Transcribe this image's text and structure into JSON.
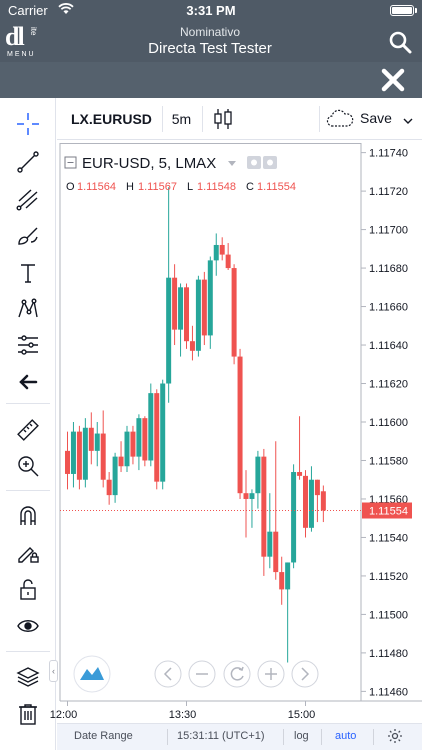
{
  "status_bar": {
    "carrier": "Carrier",
    "time": "3:31 PM"
  },
  "app_header": {
    "logo_main": "dl",
    "logo_sub": "ite",
    "logo_menu": "MENU",
    "subtitle": "Nominativo",
    "title": "Directa Test Tester"
  },
  "toolbar": {
    "symbol": "LX.EURUSD",
    "interval": "5m",
    "save_label": "Save"
  },
  "legend": {
    "title": "EUR-USD, 5, LMAX",
    "o_label": "O",
    "o_value": "1.11564",
    "h_label": "H",
    "h_value": "1.11567",
    "l_label": "L",
    "l_value": "1.11548",
    "c_label": "C",
    "c_value": "1.11554"
  },
  "price_scale": {
    "ticks": [
      "1.11740",
      "1.11720",
      "1.11700",
      "1.11680",
      "1.11660",
      "1.11640",
      "1.11620",
      "1.11600",
      "1.11580",
      "1.11560",
      "1.11540",
      "1.11520",
      "1.11500",
      "1.11480",
      "1.11460"
    ],
    "last_price": "1.11554"
  },
  "time_scale": {
    "ticks": [
      "12:00",
      "13:30",
      "15:00"
    ]
  },
  "bottom_bar": {
    "date_range": "Date Range",
    "clock": "15:31:11 (UTC+1)",
    "log": "log",
    "auto": "auto"
  },
  "colors": {
    "up": "#26a69a",
    "down": "#ef5350",
    "header": "#4f5a66",
    "accent": "#2962ff"
  },
  "chart_data": {
    "type": "candlestick",
    "title": "EUR-USD, 5, LMAX",
    "ylim": [
      1.11455,
      1.11745
    ],
    "x_ticks": [
      "12:00",
      "13:30",
      "15:00"
    ],
    "candles": [
      {
        "o": 1.11585,
        "h": 1.11595,
        "l": 1.11565,
        "c": 1.11573
      },
      {
        "o": 1.11573,
        "h": 1.116,
        "l": 1.11566,
        "c": 1.11595
      },
      {
        "o": 1.11595,
        "h": 1.11598,
        "l": 1.11565,
        "c": 1.1157
      },
      {
        "o": 1.1157,
        "h": 1.11602,
        "l": 1.11566,
        "c": 1.11597
      },
      {
        "o": 1.11597,
        "h": 1.11605,
        "l": 1.11578,
        "c": 1.11585
      },
      {
        "o": 1.11585,
        "h": 1.116,
        "l": 1.11577,
        "c": 1.11594
      },
      {
        "o": 1.11594,
        "h": 1.11606,
        "l": 1.11566,
        "c": 1.1157
      },
      {
        "o": 1.1157,
        "h": 1.11574,
        "l": 1.11557,
        "c": 1.11562
      },
      {
        "o": 1.11562,
        "h": 1.11584,
        "l": 1.11558,
        "c": 1.11582
      },
      {
        "o": 1.11582,
        "h": 1.1159,
        "l": 1.11574,
        "c": 1.11577
      },
      {
        "o": 1.11577,
        "h": 1.11598,
        "l": 1.11574,
        "c": 1.11595
      },
      {
        "o": 1.11595,
        "h": 1.11598,
        "l": 1.11578,
        "c": 1.11582
      },
      {
        "o": 1.11582,
        "h": 1.11604,
        "l": 1.11575,
        "c": 1.11602
      },
      {
        "o": 1.11602,
        "h": 1.11603,
        "l": 1.11577,
        "c": 1.1158
      },
      {
        "o": 1.1158,
        "h": 1.1162,
        "l": 1.11577,
        "c": 1.11615
      },
      {
        "o": 1.11615,
        "h": 1.11617,
        "l": 1.11565,
        "c": 1.11569
      },
      {
        "o": 1.11569,
        "h": 1.11622,
        "l": 1.11565,
        "c": 1.1162
      },
      {
        "o": 1.1162,
        "h": 1.11722,
        "l": 1.1161,
        "c": 1.11675
      },
      {
        "o": 1.11675,
        "h": 1.11682,
        "l": 1.1164,
        "c": 1.11648
      },
      {
        "o": 1.11648,
        "h": 1.11672,
        "l": 1.11634,
        "c": 1.1167
      },
      {
        "o": 1.1167,
        "h": 1.11672,
        "l": 1.11638,
        "c": 1.11642
      },
      {
        "o": 1.11642,
        "h": 1.1165,
        "l": 1.11632,
        "c": 1.11637
      },
      {
        "o": 1.11637,
        "h": 1.11676,
        "l": 1.11634,
        "c": 1.11674
      },
      {
        "o": 1.11674,
        "h": 1.11678,
        "l": 1.1164,
        "c": 1.11645
      },
      {
        "o": 1.11645,
        "h": 1.11686,
        "l": 1.11638,
        "c": 1.11684
      },
      {
        "o": 1.11684,
        "h": 1.11698,
        "l": 1.11676,
        "c": 1.11692
      },
      {
        "o": 1.11692,
        "h": 1.11696,
        "l": 1.11684,
        "c": 1.11687
      },
      {
        "o": 1.11687,
        "h": 1.11693,
        "l": 1.11679,
        "c": 1.1168
      },
      {
        "o": 1.1168,
        "h": 1.11682,
        "l": 1.1163,
        "c": 1.11634
      },
      {
        "o": 1.11634,
        "h": 1.11638,
        "l": 1.1156,
        "c": 1.11563
      },
      {
        "o": 1.11563,
        "h": 1.11575,
        "l": 1.1154,
        "c": 1.1156
      },
      {
        "o": 1.1156,
        "h": 1.11565,
        "l": 1.11545,
        "c": 1.11563
      },
      {
        "o": 1.11563,
        "h": 1.11585,
        "l": 1.11555,
        "c": 1.11582
      },
      {
        "o": 1.11582,
        "h": 1.11586,
        "l": 1.1152,
        "c": 1.1153
      },
      {
        "o": 1.1153,
        "h": 1.11563,
        "l": 1.11524,
        "c": 1.11543
      },
      {
        "o": 1.11543,
        "h": 1.1159,
        "l": 1.11518,
        "c": 1.11522
      },
      {
        "o": 1.11522,
        "h": 1.1153,
        "l": 1.11505,
        "c": 1.11513
      },
      {
        "o": 1.11513,
        "h": 1.11527,
        "l": 1.11475,
        "c": 1.11527
      },
      {
        "o": 1.11527,
        "h": 1.11578,
        "l": 1.11524,
        "c": 1.11574
      },
      {
        "o": 1.11574,
        "h": 1.11603,
        "l": 1.1157,
        "c": 1.11572
      },
      {
        "o": 1.11572,
        "h": 1.11575,
        "l": 1.1154,
        "c": 1.11545
      },
      {
        "o": 1.11545,
        "h": 1.11577,
        "l": 1.11543,
        "c": 1.1157
      },
      {
        "o": 1.1157,
        "h": 1.1157,
        "l": 1.11548,
        "c": 1.11562
      },
      {
        "o": 1.11564,
        "h": 1.11567,
        "l": 1.11548,
        "c": 1.11554
      }
    ]
  }
}
